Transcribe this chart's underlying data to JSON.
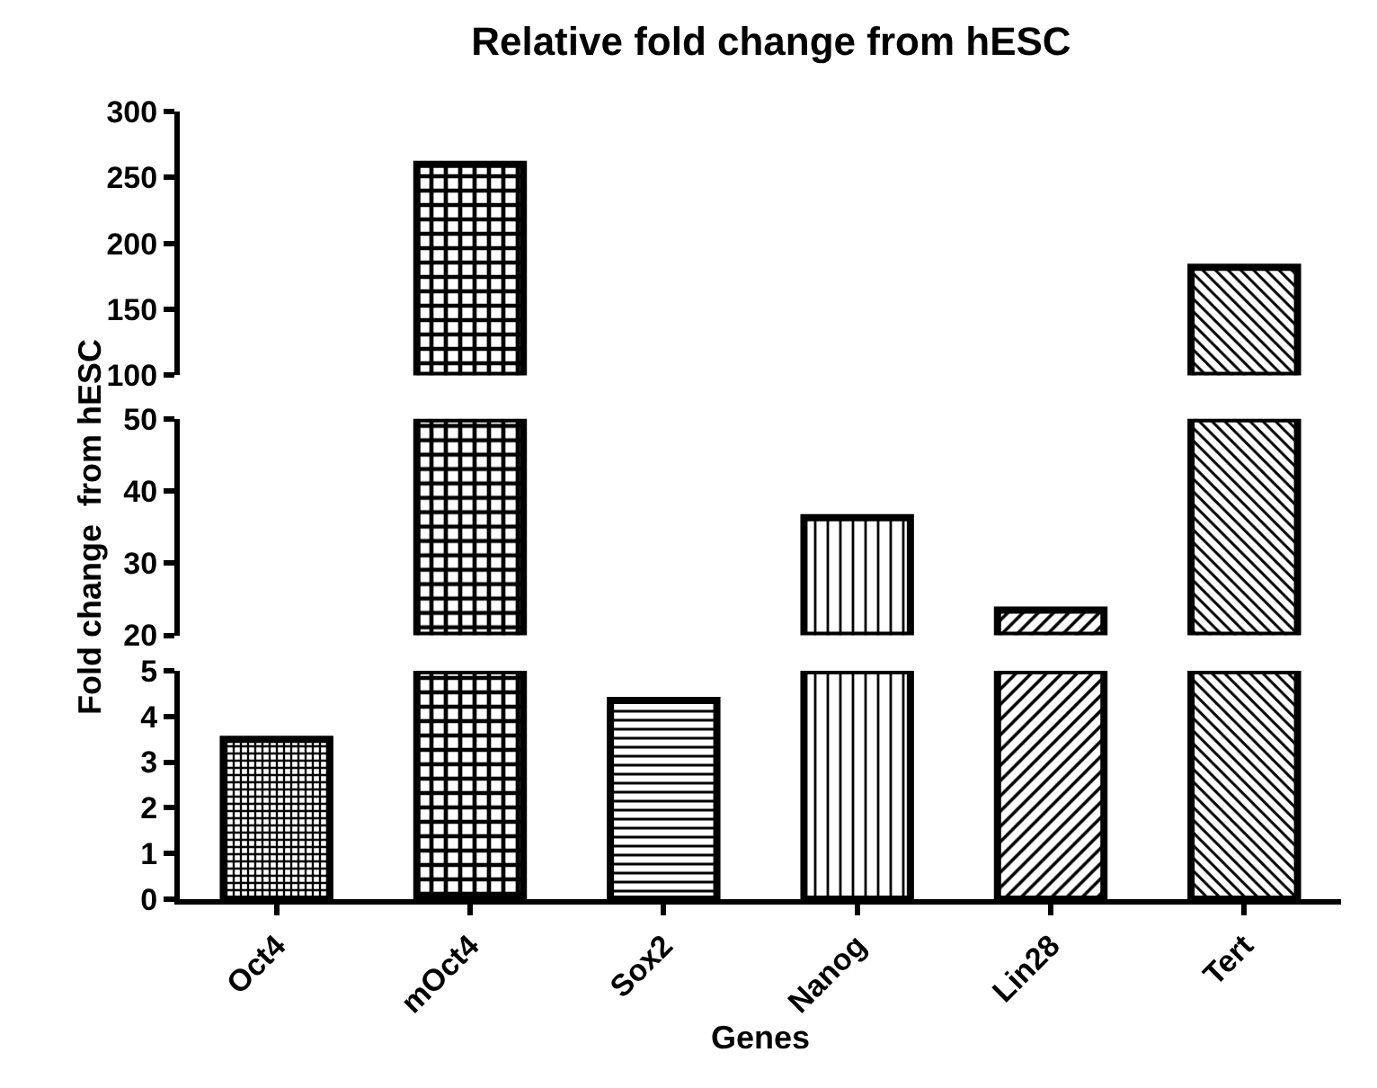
{
  "chart_data": [
    {
      "type": "bar",
      "title": "Relative fold change from hESC",
      "categories": [
        null,
        null,
        null,
        null,
        null,
        null
      ],
      "values": [
        null,
        160,
        null,
        null,
        null,
        82
      ],
      "base": [
        null,
        100,
        null,
        null,
        null,
        100
      ],
      "colors": [
        "#000000",
        "#000000",
        "#000000",
        "#000000",
        "#000000",
        "#000000"
      ],
      "ylim": [
        100,
        300
      ],
      "yticks": [
        100,
        150,
        200,
        250,
        300
      ],
      "tick_labels": "y"
    },
    {
      "type": "bar",
      "ylabel": "Fold change  from hESC",
      "categories": [
        null,
        null,
        null,
        null,
        null,
        null
      ],
      "values": [
        null,
        30,
        null,
        16.3,
        3.5,
        30
      ],
      "base": [
        null,
        20,
        null,
        20,
        20,
        20
      ],
      "colors": [
        "#000000",
        "#000000",
        "#000000",
        "#000000",
        "#000000",
        "#000000"
      ],
      "ylim": [
        20,
        50
      ],
      "yticks": [
        20,
        30,
        40,
        50
      ],
      "tick_labels": "y"
    },
    {
      "type": "bar",
      "xlabel": "Genes",
      "categories": [
        "Oct4",
        "mOct4",
        "Sox2",
        "Nanog",
        "Lin28",
        "Tert"
      ],
      "values": [
        3.5,
        5,
        4.35,
        5,
        5,
        5
      ],
      "colors": [
        "#000000",
        "#000000",
        "#000000",
        "#000000",
        "#000000",
        "#000000"
      ],
      "ylim": [
        0,
        5
      ],
      "yticks": [
        0,
        1,
        2,
        3,
        4,
        5
      ]
    }
  ]
}
